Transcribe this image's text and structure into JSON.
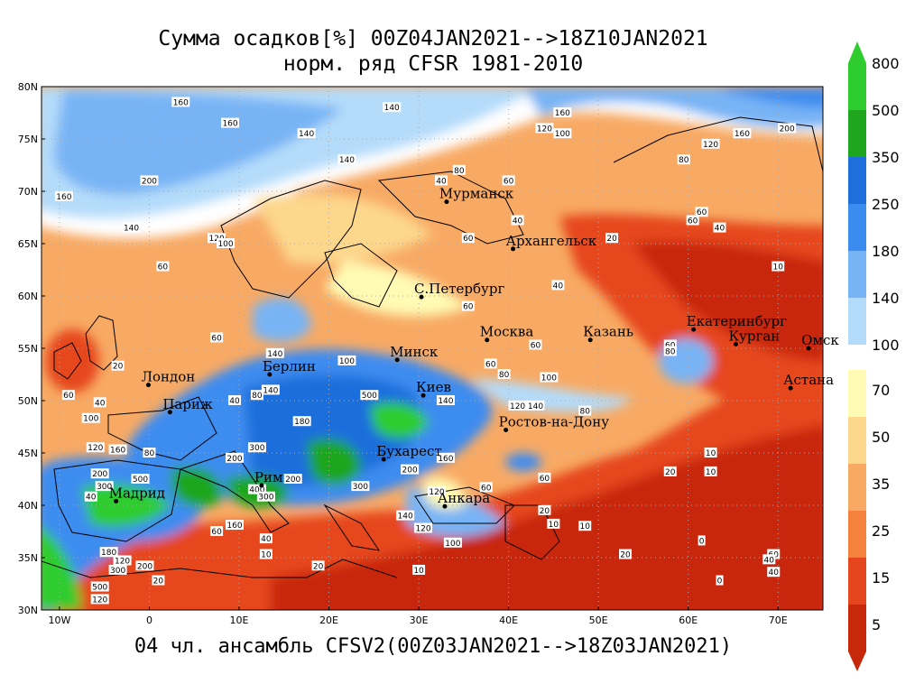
{
  "title_line1": "Сумма осадков[%] 00Z04JAN2021-->18Z10JAN2021",
  "title_line2": "норм. ряд CFSR 1981-2010",
  "footer": "04 чл. ансамбль CFSV2(00Z03JAN2021-->18Z03JAN2021)",
  "lat_labels": [
    "80N",
    "75N",
    "70N",
    "65N",
    "60N",
    "55N",
    "50N",
    "45N",
    "40N",
    "35N",
    "30N"
  ],
  "lon_labels": [
    "10W",
    "0",
    "10E",
    "20E",
    "30E",
    "40E",
    "50E",
    "60E",
    "70E"
  ],
  "cities": [
    {
      "name": "Мурманск",
      "lon": 33.1,
      "lat": 69.0
    },
    {
      "name": "Архангельск",
      "lon": 40.5,
      "lat": 64.5
    },
    {
      "name": "С.Петербург",
      "lon": 30.3,
      "lat": 59.9
    },
    {
      "name": "Москва",
      "lon": 37.6,
      "lat": 55.8
    },
    {
      "name": "Казань",
      "lon": 49.1,
      "lat": 55.8
    },
    {
      "name": "Екатеринбург",
      "lon": 60.6,
      "lat": 56.8
    },
    {
      "name": "Курган",
      "lon": 65.3,
      "lat": 55.4
    },
    {
      "name": "Омск",
      "lon": 73.4,
      "lat": 55.0
    },
    {
      "name": "Астана",
      "lon": 71.4,
      "lat": 51.2
    },
    {
      "name": "Минск",
      "lon": 27.6,
      "lat": 53.9
    },
    {
      "name": "Берлин",
      "lon": 13.4,
      "lat": 52.5
    },
    {
      "name": "Лондон",
      "lon": -0.1,
      "lat": 51.5
    },
    {
      "name": "Париж",
      "lon": 2.3,
      "lat": 48.9
    },
    {
      "name": "Киев",
      "lon": 30.5,
      "lat": 50.5
    },
    {
      "name": "Ростов-на-Дону",
      "lon": 39.7,
      "lat": 47.2
    },
    {
      "name": "Бухарест",
      "lon": 26.1,
      "lat": 44.4
    },
    {
      "name": "Рим",
      "lon": 12.5,
      "lat": 41.9
    },
    {
      "name": "Мадрид",
      "lon": -3.7,
      "lat": 40.4
    },
    {
      "name": "Анкара",
      "lon": 32.9,
      "lat": 39.9
    }
  ],
  "colorbar": {
    "upper": [
      {
        "label": "800",
        "color": "#2fcc2f"
      },
      {
        "label": "500",
        "color": "#1fa61f"
      },
      {
        "label": "350",
        "color": "#1e6edc"
      },
      {
        "label": "250",
        "color": "#3c8cf0"
      },
      {
        "label": "180",
        "color": "#78b4f5"
      },
      {
        "label": "140",
        "color": "#b4dcfa"
      },
      {
        "label": "100",
        "color": "#ffffff"
      }
    ],
    "lower": [
      {
        "label": "70",
        "color": "#fffab4"
      },
      {
        "label": "50",
        "color": "#fcd78c"
      },
      {
        "label": "35",
        "color": "#f8aa64"
      },
      {
        "label": "25",
        "color": "#f5823c"
      },
      {
        "label": "15",
        "color": "#e6461e"
      },
      {
        "label": "5",
        "color": "#c8280a"
      }
    ]
  },
  "contour_labels": [
    {
      "t": "160",
      "lon": 3.5,
      "lat": 78.5
    },
    {
      "t": "140",
      "lon": 27,
      "lat": 78
    },
    {
      "t": "160",
      "lon": 46,
      "lat": 77.5
    },
    {
      "t": "160",
      "lon": 9,
      "lat": 76.5
    },
    {
      "t": "120",
      "lon": 44,
      "lat": 76
    },
    {
      "t": "100",
      "lon": 46,
      "lat": 75.5
    },
    {
      "t": "140",
      "lon": 17.5,
      "lat": 75.5
    },
    {
      "t": "200",
      "lon": 71,
      "lat": 76
    },
    {
      "t": "160",
      "lon": 66,
      "lat": 75.5
    },
    {
      "t": "120",
      "lon": 62.5,
      "lat": 74.5
    },
    {
      "t": "140",
      "lon": 22,
      "lat": 73
    },
    {
      "t": "80",
      "lon": 59.5,
      "lat": 73
    },
    {
      "t": "200",
      "lon": 0,
      "lat": 71
    },
    {
      "t": "80",
      "lon": 34.5,
      "lat": 72
    },
    {
      "t": "40",
      "lon": 32.5,
      "lat": 71
    },
    {
      "t": "60",
      "lon": 40,
      "lat": 71
    },
    {
      "t": "160",
      "lon": -9.5,
      "lat": 69.5
    },
    {
      "t": "60",
      "lon": 61.5,
      "lat": 68
    },
    {
      "t": "140",
      "lon": -2,
      "lat": 66.5
    },
    {
      "t": "40",
      "lon": 41,
      "lat": 67.2
    },
    {
      "t": "60",
      "lon": 60.5,
      "lat": 67.2
    },
    {
      "t": "40",
      "lon": 63.5,
      "lat": 66.5
    },
    {
      "t": "120",
      "lon": 7.5,
      "lat": 65.5
    },
    {
      "t": "100",
      "lon": 8.5,
      "lat": 65
    },
    {
      "t": "60",
      "lon": 35.5,
      "lat": 65.5
    },
    {
      "t": "20",
      "lon": 51.5,
      "lat": 65.5
    },
    {
      "t": "60",
      "lon": 1.5,
      "lat": 62.8
    },
    {
      "t": "10",
      "lon": 70,
      "lat": 62.8
    },
    {
      "t": "40",
      "lon": 45.5,
      "lat": 61
    },
    {
      "t": "60",
      "lon": 35.5,
      "lat": 59
    },
    {
      "t": "60",
      "lon": 7.5,
      "lat": 56
    },
    {
      "t": "60",
      "lon": 58,
      "lat": 55.3
    },
    {
      "t": "80",
      "lon": 58,
      "lat": 54.7
    },
    {
      "t": "60",
      "lon": 43,
      "lat": 55.3
    },
    {
      "t": "20",
      "lon": -3.5,
      "lat": 53.3
    },
    {
      "t": "60",
      "lon": 38,
      "lat": 53.5
    },
    {
      "t": "80",
      "lon": 39.5,
      "lat": 52.5
    },
    {
      "t": "100",
      "lon": 44.5,
      "lat": 52.2
    },
    {
      "t": "100",
      "lon": 22,
      "lat": 53.8
    },
    {
      "t": "140",
      "lon": 14,
      "lat": 54.5
    },
    {
      "t": "80",
      "lon": 12,
      "lat": 50.5
    },
    {
      "t": "140",
      "lon": 13.5,
      "lat": 51
    },
    {
      "t": "40",
      "lon": 9.5,
      "lat": 50
    },
    {
      "t": "60",
      "lon": -9,
      "lat": 50.5
    },
    {
      "t": "40",
      "lon": -5.5,
      "lat": 49.8
    },
    {
      "t": "500",
      "lon": 24.5,
      "lat": 50.5
    },
    {
      "t": "140",
      "lon": 33,
      "lat": 50
    },
    {
      "t": "120",
      "lon": 41,
      "lat": 49.5
    },
    {
      "t": "140",
      "lon": 43,
      "lat": 49.5
    },
    {
      "t": "80",
      "lon": 48.5,
      "lat": 49
    },
    {
      "t": "100",
      "lon": -6.5,
      "lat": 48.3
    },
    {
      "t": "180",
      "lon": 17,
      "lat": 48
    },
    {
      "t": "120",
      "lon": -6,
      "lat": 45.5
    },
    {
      "t": "160",
      "lon": -3.5,
      "lat": 45.3
    },
    {
      "t": "80",
      "lon": 0,
      "lat": 45
    },
    {
      "t": "300",
      "lon": 12,
      "lat": 45.5
    },
    {
      "t": "200",
      "lon": 9.5,
      "lat": 44.5
    },
    {
      "t": "160",
      "lon": 33,
      "lat": 44.5
    },
    {
      "t": "200",
      "lon": 29,
      "lat": 43.4
    },
    {
      "t": "10",
      "lon": 62.5,
      "lat": 45
    },
    {
      "t": "10",
      "lon": 62.5,
      "lat": 43.2
    },
    {
      "t": "20",
      "lon": 58,
      "lat": 43.2
    },
    {
      "t": "60",
      "lon": 44,
      "lat": 42.6
    },
    {
      "t": "200",
      "lon": -5.5,
      "lat": 43
    },
    {
      "t": "500",
      "lon": -1,
      "lat": 42.5
    },
    {
      "t": "300",
      "lon": -5,
      "lat": 41.8
    },
    {
      "t": "40",
      "lon": -6.5,
      "lat": 40.8
    },
    {
      "t": "400",
      "lon": 12,
      "lat": 41.5
    },
    {
      "t": "200",
      "lon": 16,
      "lat": 42.5
    },
    {
      "t": "300",
      "lon": 13,
      "lat": 40.8
    },
    {
      "t": "300",
      "lon": 23.5,
      "lat": 41.8
    },
    {
      "t": "60",
      "lon": 37.5,
      "lat": 41.7
    },
    {
      "t": "120",
      "lon": 32,
      "lat": 41.3
    },
    {
      "t": "20",
      "lon": 44,
      "lat": 39.5
    },
    {
      "t": "10",
      "lon": 45,
      "lat": 38.2
    },
    {
      "t": "10",
      "lon": 48.5,
      "lat": 38
    },
    {
      "t": "140",
      "lon": 28.5,
      "lat": 39
    },
    {
      "t": "120",
      "lon": 30.5,
      "lat": 37.8
    },
    {
      "t": "60",
      "lon": 7.5,
      "lat": 37.5
    },
    {
      "t": "160",
      "lon": 9.5,
      "lat": 38.1
    },
    {
      "t": "40",
      "lon": 13,
      "lat": 36.8
    },
    {
      "t": "0",
      "lon": 61.5,
      "lat": 36.6
    },
    {
      "t": "180",
      "lon": -4.5,
      "lat": 35.5
    },
    {
      "t": "120",
      "lon": -3,
      "lat": 34.7
    },
    {
      "t": "100",
      "lon": 33.8,
      "lat": 36.4
    },
    {
      "t": "10",
      "lon": 13,
      "lat": 35.3
    },
    {
      "t": "20",
      "lon": 53,
      "lat": 35.3
    },
    {
      "t": "60",
      "lon": 69.5,
      "lat": 35.3
    },
    {
      "t": "40",
      "lon": 69,
      "lat": 34.8
    },
    {
      "t": "300",
      "lon": -3.5,
      "lat": 33.8
    },
    {
      "t": "200",
      "lon": -0.5,
      "lat": 34.2
    },
    {
      "t": "20",
      "lon": 18.8,
      "lat": 34.2
    },
    {
      "t": "10",
      "lon": 30,
      "lat": 33.8
    },
    {
      "t": "40",
      "lon": 69.5,
      "lat": 33.6
    },
    {
      "t": "20",
      "lon": 1,
      "lat": 32.8
    },
    {
      "t": "0",
      "lon": 63.5,
      "lat": 32.8
    },
    {
      "t": "500",
      "lon": -5.5,
      "lat": 32.2
    },
    {
      "t": "120",
      "lon": -5.5,
      "lat": 31
    }
  ]
}
